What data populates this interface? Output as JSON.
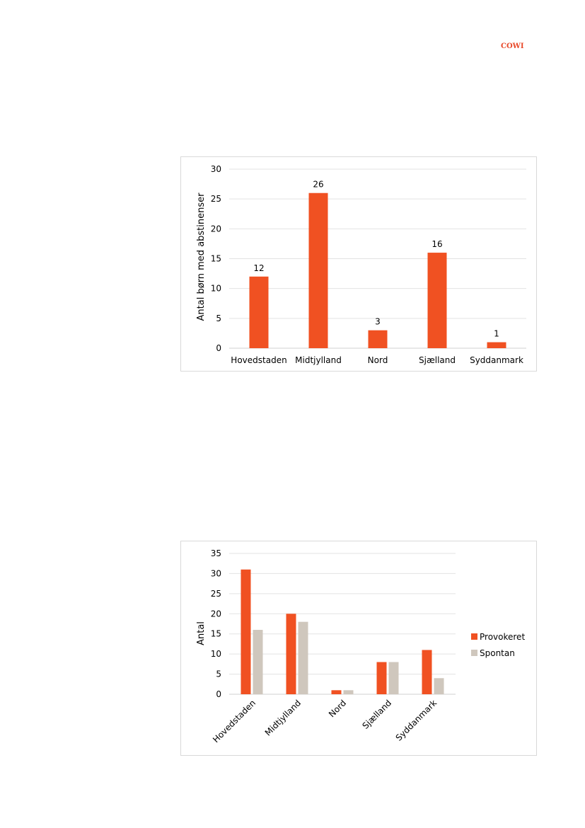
{
  "logo": {
    "text": "COWI",
    "color": "#e8492a"
  },
  "chart_data": [
    {
      "type": "bar",
      "categories": [
        "Hovedstaden",
        "Midtjylland",
        "Nord",
        "Sjælland",
        "Syddanmark"
      ],
      "values": [
        12,
        26,
        3,
        16,
        1
      ],
      "data_labels": [
        "12",
        "26",
        "3",
        "16",
        "1"
      ],
      "ylabel": "Antal børn med abstinenser",
      "ylim": [
        0,
        30
      ],
      "yticks": [
        0,
        5,
        10,
        15,
        20,
        25,
        30
      ],
      "grid": true,
      "color": "#f05122"
    },
    {
      "type": "bar",
      "categories": [
        "Hovedstaden",
        "Midtjylland",
        "Nord",
        "Sjælland",
        "Syddanmark"
      ],
      "series": [
        {
          "name": "Provokeret",
          "values": [
            31,
            20,
            1,
            8,
            11
          ],
          "color": "#f05122"
        },
        {
          "name": "Spontan",
          "values": [
            16,
            18,
            1,
            8,
            4
          ],
          "color": "#cfc7bd"
        }
      ],
      "ylabel": "Antal",
      "ylim": [
        0,
        35
      ],
      "yticks": [
        0,
        5,
        10,
        15,
        20,
        25,
        30,
        35
      ],
      "grid": true,
      "legend": "right"
    }
  ]
}
